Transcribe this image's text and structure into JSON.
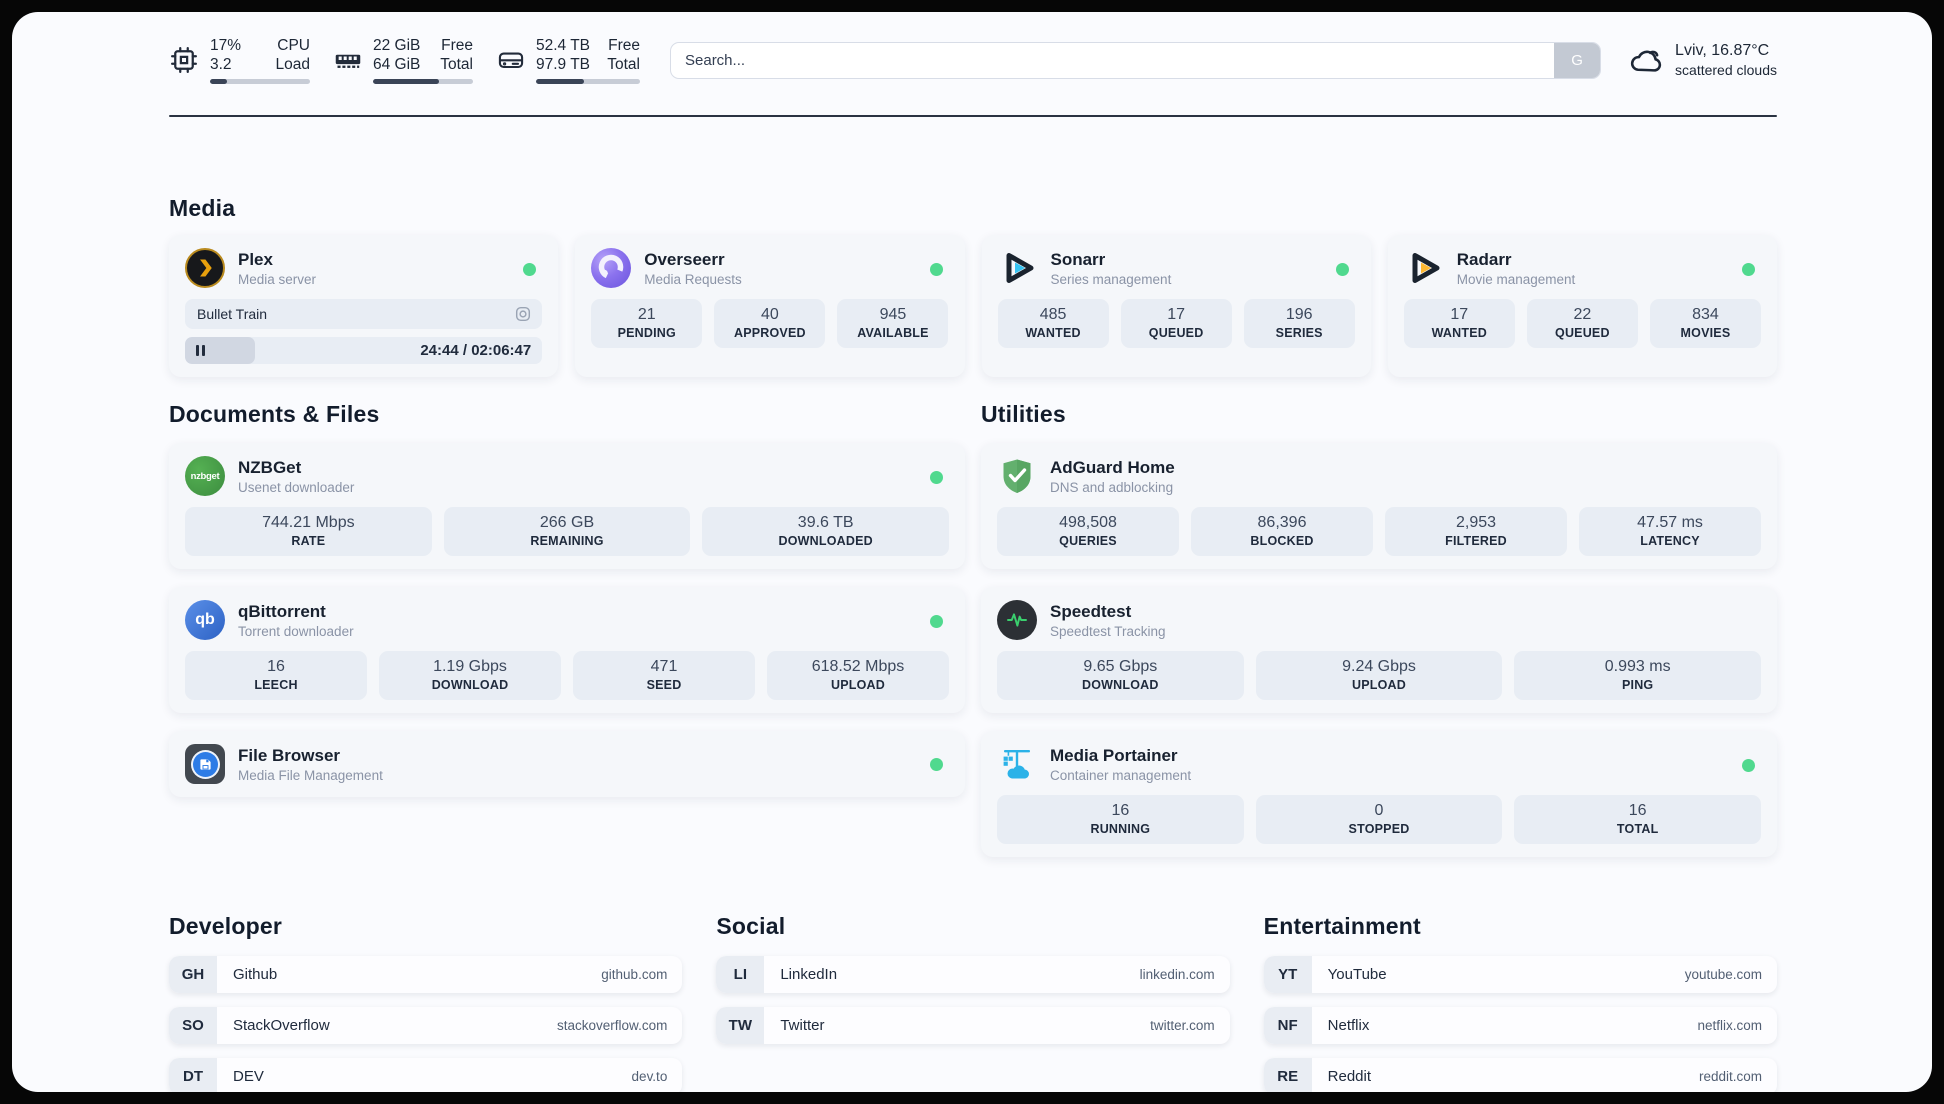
{
  "colors": {
    "status_online": "#50d98e",
    "accent_dark": "#222b3a",
    "panel_bg": "#fafbfe",
    "card_bg": "#f5f7fa",
    "pill_bg": "#e8edf4"
  },
  "header": {
    "cpu": {
      "values": [
        "17%",
        "3.2"
      ],
      "labels": [
        "CPU",
        "Load"
      ],
      "progress_pct": 17
    },
    "memory": {
      "values": [
        "22 GiB",
        "64 GiB"
      ],
      "labels": [
        "Free",
        "Total"
      ],
      "progress_pct": 66
    },
    "disk": {
      "values": [
        "52.4 TB",
        "97.9 TB"
      ],
      "labels": [
        "Free",
        "Total"
      ],
      "progress_pct": 46
    },
    "search": {
      "placeholder": "Search...",
      "engine_button": "G"
    },
    "weather": {
      "location": "Lviv, 16.87°C",
      "condition": "scattered clouds"
    }
  },
  "sections": {
    "media": {
      "title": "Media"
    },
    "documents": {
      "title": "Documents & Files"
    },
    "utilities": {
      "title": "Utilities"
    },
    "developer": {
      "title": "Developer"
    },
    "social": {
      "title": "Social"
    },
    "entertainment": {
      "title": "Entertainment"
    }
  },
  "apps": {
    "plex": {
      "name": "Plex",
      "description": "Media server",
      "status": "online",
      "now_playing": {
        "title": "Bullet Train",
        "time": "24:44 / 02:06:47",
        "progress_pct": 19.5
      }
    },
    "overseerr": {
      "name": "Overseerr",
      "description": "Media Requests",
      "status": "online",
      "stats": [
        {
          "value": "21",
          "label": "PENDING"
        },
        {
          "value": "40",
          "label": "APPROVED"
        },
        {
          "value": "945",
          "label": "AVAILABLE"
        }
      ]
    },
    "sonarr": {
      "name": "Sonarr",
      "description": "Series management",
      "status": "online",
      "stats": [
        {
          "value": "485",
          "label": "WANTED"
        },
        {
          "value": "17",
          "label": "QUEUED"
        },
        {
          "value": "196",
          "label": "SERIES"
        }
      ]
    },
    "radarr": {
      "name": "Radarr",
      "description": "Movie management",
      "status": "online",
      "stats": [
        {
          "value": "17",
          "label": "WANTED"
        },
        {
          "value": "22",
          "label": "QUEUED"
        },
        {
          "value": "834",
          "label": "MOVIES"
        }
      ]
    },
    "nzbget": {
      "name": "NZBGet",
      "description": "Usenet downloader",
      "status": "online",
      "stats": [
        {
          "value": "744.21 Mbps",
          "label": "RATE"
        },
        {
          "value": "266 GB",
          "label": "REMAINING"
        },
        {
          "value": "39.6 TB",
          "label": "DOWNLOADED"
        }
      ]
    },
    "qbittorrent": {
      "name": "qBittorrent",
      "description": "Torrent downloader",
      "status": "online",
      "stats": [
        {
          "value": "16",
          "label": "LEECH"
        },
        {
          "value": "1.19 Gbps",
          "label": "DOWNLOAD"
        },
        {
          "value": "471",
          "label": "SEED"
        },
        {
          "value": "618.52 Mbps",
          "label": "UPLOAD"
        }
      ]
    },
    "filebrowser": {
      "name": "File Browser",
      "description": "Media File Management",
      "status": "online"
    },
    "adguard": {
      "name": "AdGuard Home",
      "description": "DNS and adblocking",
      "stats": [
        {
          "value": "498,508",
          "label": "QUERIES"
        },
        {
          "value": "86,396",
          "label": "BLOCKED"
        },
        {
          "value": "2,953",
          "label": "FILTERED"
        },
        {
          "value": "47.57 ms",
          "label": "LATENCY"
        }
      ]
    },
    "speedtest": {
      "name": "Speedtest",
      "description": "Speedtest Tracking",
      "stats": [
        {
          "value": "9.65 Gbps",
          "label": "DOWNLOAD"
        },
        {
          "value": "9.24 Gbps",
          "label": "UPLOAD"
        },
        {
          "value": "0.993 ms",
          "label": "PING"
        }
      ]
    },
    "portainer": {
      "name": "Media Portainer",
      "description": "Container management",
      "status": "online",
      "stats": [
        {
          "value": "16",
          "label": "RUNNING"
        },
        {
          "value": "0",
          "label": "STOPPED"
        },
        {
          "value": "16",
          "label": "TOTAL"
        }
      ]
    }
  },
  "links": {
    "developer": [
      {
        "abbr": "GH",
        "name": "Github",
        "url": "github.com"
      },
      {
        "abbr": "SO",
        "name": "StackOverflow",
        "url": "stackoverflow.com"
      },
      {
        "abbr": "DT",
        "name": "DEV",
        "url": "dev.to"
      }
    ],
    "social": [
      {
        "abbr": "LI",
        "name": "LinkedIn",
        "url": "linkedin.com"
      },
      {
        "abbr": "TW",
        "name": "Twitter",
        "url": "twitter.com"
      }
    ],
    "entertainment": [
      {
        "abbr": "YT",
        "name": "YouTube",
        "url": "youtube.com"
      },
      {
        "abbr": "NF",
        "name": "Netflix",
        "url": "netflix.com"
      },
      {
        "abbr": "RE",
        "name": "Reddit",
        "url": "reddit.com"
      }
    ]
  }
}
